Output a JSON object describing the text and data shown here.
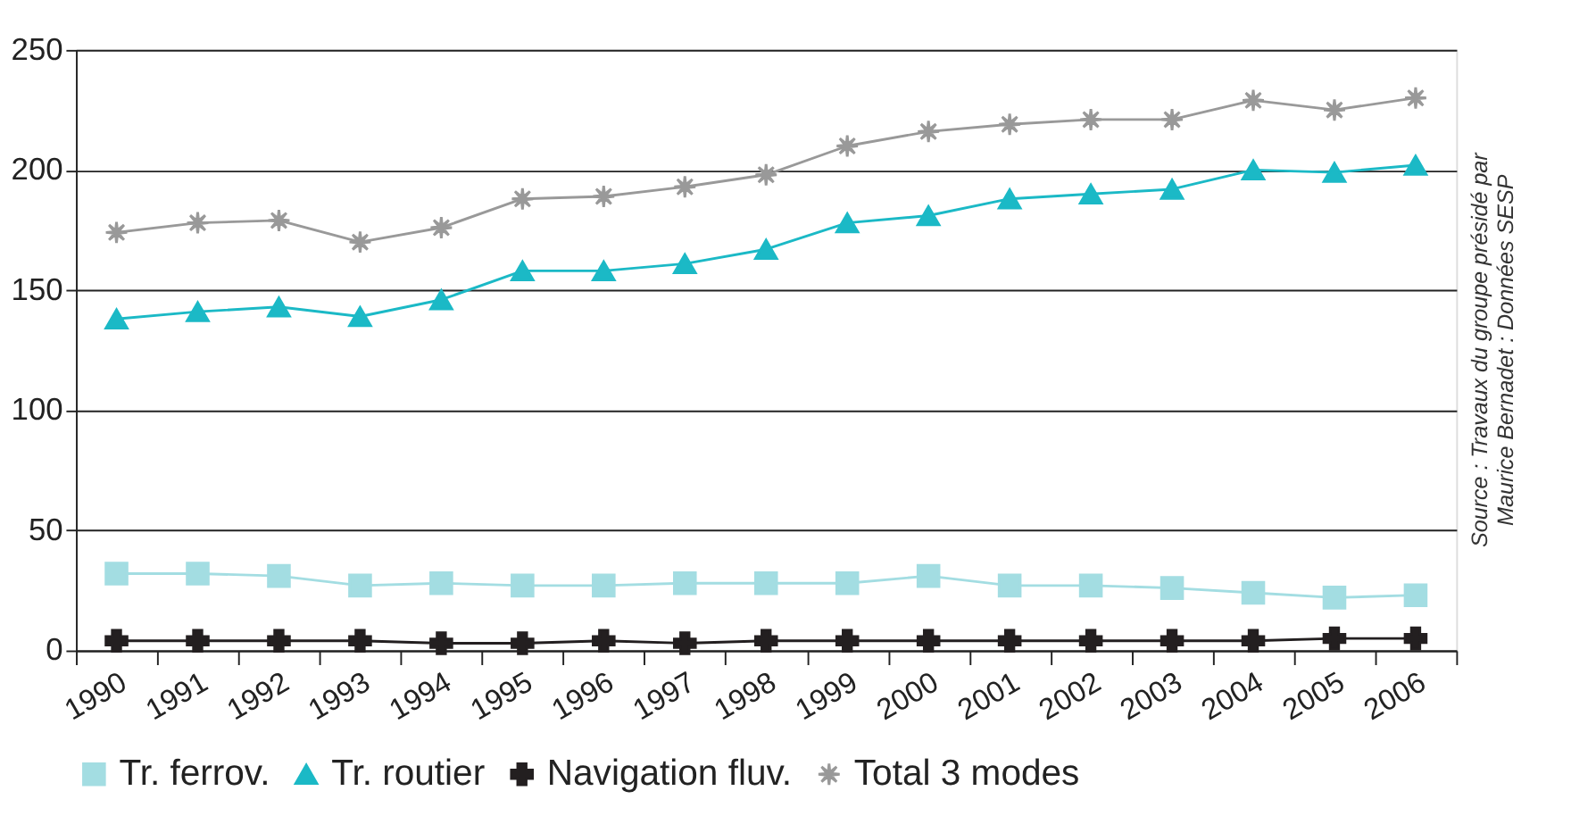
{
  "chart_data": {
    "type": "line",
    "categories": [
      "1990",
      "1991",
      "1992",
      "1993",
      "1994",
      "1995",
      "1996",
      "1997",
      "1998",
      "1999",
      "2000",
      "2001",
      "2002",
      "2003",
      "2004",
      "2005",
      "2006"
    ],
    "series": [
      {
        "name": "Tr. ferrov.",
        "color": "#a3dde2",
        "marker": "square",
        "values": [
          32,
          32,
          31,
          27,
          28,
          27,
          27,
          28,
          28,
          28,
          31,
          27,
          27,
          26,
          24,
          22,
          23
        ]
      },
      {
        "name": "Tr. routier",
        "color": "#1bb9c6",
        "marker": "triangle",
        "values": [
          138,
          141,
          143,
          139,
          146,
          158,
          158,
          161,
          167,
          178,
          181,
          188,
          190,
          192,
          200,
          199,
          202
        ]
      },
      {
        "name": "Navigation fluv.",
        "color": "#231f20",
        "marker": "cross",
        "values": [
          4,
          4,
          4,
          4,
          3,
          3,
          4,
          3,
          4,
          4,
          4,
          4,
          4,
          4,
          4,
          5,
          5
        ]
      },
      {
        "name": "Total 3 modes",
        "color": "#999999",
        "marker": "star",
        "values": [
          174,
          178,
          179,
          170,
          176,
          188,
          189,
          193,
          198,
          210,
          216,
          219,
          221,
          221,
          229,
          225,
          230
        ]
      }
    ],
    "ylim": [
      0,
      250
    ],
    "yticks": [
      0,
      50,
      100,
      150,
      200,
      250
    ],
    "grid": "y",
    "legend": "bottom",
    "annotations": [
      "Source : Travaux du groupe présidé par\nMaurice Bernadet : Données SESP"
    ]
  }
}
